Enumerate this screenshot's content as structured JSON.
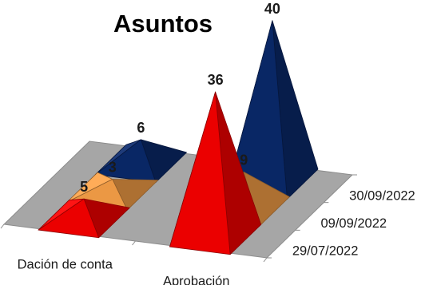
{
  "chart_data": {
    "type": "bar",
    "style": "3d-pyramid",
    "title": "Asuntos",
    "categories": [
      "Dación de conta",
      "Aprobación"
    ],
    "series": [
      {
        "name": "29/07/2022",
        "values": [
          5,
          36
        ],
        "colors": [
          "#ff0000",
          "#ff0000"
        ]
      },
      {
        "name": "09/09/2022",
        "values": [
          3,
          9
        ],
        "colors": [
          "#ffa54a",
          "#ffa54a"
        ]
      },
      {
        "name": "30/09/2022",
        "values": [
          6,
          40
        ],
        "colors": [
          "#0a2a6e",
          "#0a2a6e"
        ]
      }
    ],
    "floor_color": "#a6a6a6"
  }
}
